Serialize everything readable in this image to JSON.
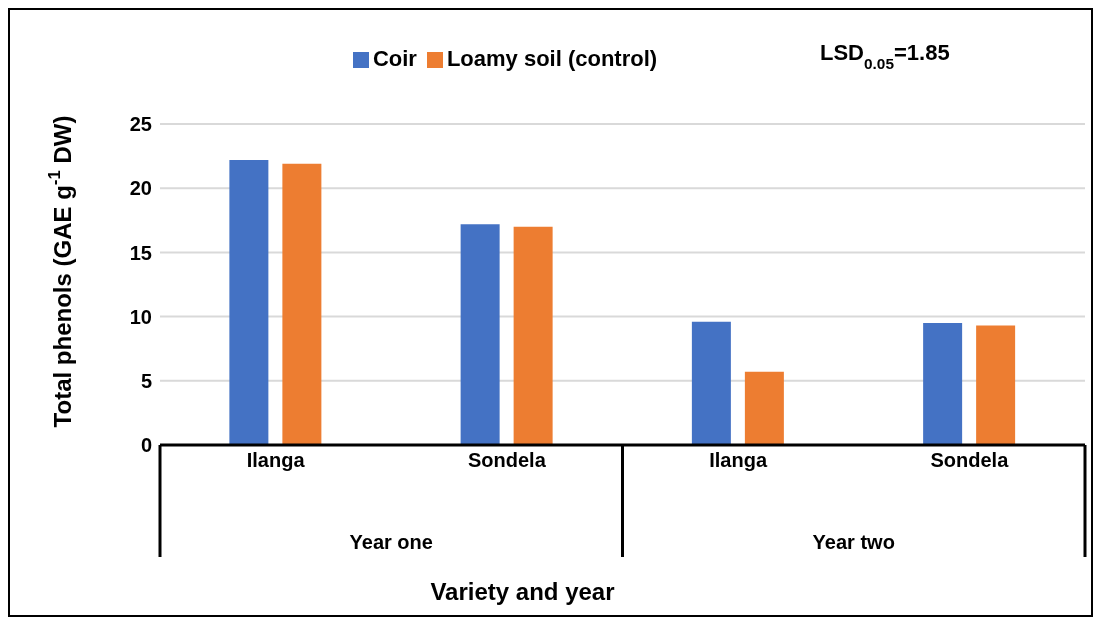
{
  "chart_data": {
    "type": "bar",
    "ylabel": "Total phenols (GAE g$^{-1}$ DW)",
    "xlabel": "Variety and year",
    "categories": [
      "Ilanga",
      "Sondela",
      "Ilanga",
      "Sondela"
    ],
    "series": [
      {
        "name": "Coir",
        "color": "#4472c4",
        "values": [
          22.2,
          17.2,
          9.6,
          9.5
        ]
      },
      {
        "name": "Loamy soil (control)",
        "color": "#ed7d31",
        "values": [
          21.9,
          17.0,
          5.7,
          9.3
        ]
      }
    ],
    "ylim": [
      0,
      25
    ],
    "yticks": [
      0,
      5,
      10,
      15,
      20,
      25
    ],
    "grid": "y",
    "legend": "top",
    "annotations": [
      "LSD$_{0.05}$=1.85",
      "Year one",
      "Year two"
    ]
  }
}
